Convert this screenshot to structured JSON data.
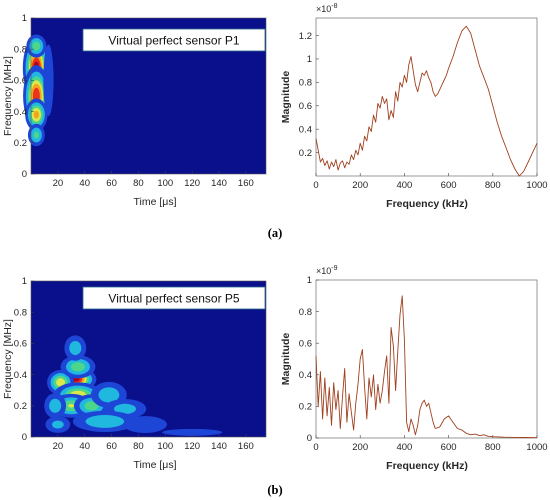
{
  "figure": {
    "label_a": "(a)",
    "label_b": "(b)"
  },
  "chart_data": [
    {
      "id": "a-left",
      "type": "heatmap",
      "title": "Virtual perfect sensor P1",
      "xlabel": "Time [μs]",
      "ylabel": "Frequency [MHz]",
      "xlim": [
        0,
        175
      ],
      "ylim": [
        0,
        1
      ],
      "xticks": [
        20,
        40,
        60,
        80,
        100,
        120,
        140,
        160
      ],
      "yticks": [
        0,
        0.2,
        0.4,
        0.6,
        0.8,
        1
      ],
      "colors": {
        "background": "#0a0f8c",
        "levels": [
          "#1e46d6",
          "#21b8e0",
          "#4cd68a",
          "#d9e84a",
          "#f7a21c",
          "#e8341c",
          "#b3001a"
        ]
      },
      "blobs": [
        {
          "t": 4,
          "f": 0.68,
          "st": 4.5,
          "sf": 0.09,
          "a": 1.0
        },
        {
          "t": 4,
          "f": 0.5,
          "st": 4.5,
          "sf": 0.09,
          "a": 0.9
        },
        {
          "t": 4,
          "f": 0.38,
          "st": 4,
          "sf": 0.05,
          "a": 0.7
        },
        {
          "t": 4,
          "f": 0.82,
          "st": 4,
          "sf": 0.04,
          "a": 0.45
        },
        {
          "t": 4,
          "f": 0.25,
          "st": 3.5,
          "sf": 0.04,
          "a": 0.4
        },
        {
          "t": 13,
          "f": 0.6,
          "st": 3,
          "sf": 0.18,
          "a": 0.18
        }
      ]
    },
    {
      "id": "a-right",
      "type": "line",
      "xlabel": "Frequency (kHz)",
      "ylabel": "Magnitude",
      "multiplier": "×10",
      "multiplier_exp": "-8",
      "xlim": [
        0,
        1000
      ],
      "ylim": [
        0,
        1.35
      ],
      "xticks": [
        0,
        200,
        400,
        600,
        800,
        1000
      ],
      "yticks": [
        0.2,
        0.4,
        0.6,
        0.8,
        1,
        1.2
      ],
      "color": "#a0401e",
      "x": [
        0,
        10,
        20,
        30,
        40,
        50,
        60,
        70,
        80,
        90,
        100,
        110,
        120,
        130,
        140,
        150,
        160,
        170,
        180,
        190,
        200,
        210,
        220,
        230,
        240,
        250,
        260,
        270,
        280,
        290,
        300,
        310,
        320,
        330,
        340,
        350,
        360,
        370,
        380,
        390,
        400,
        410,
        420,
        430,
        440,
        450,
        460,
        470,
        480,
        490,
        500,
        510,
        520,
        530,
        540,
        550,
        560,
        570,
        580,
        590,
        600,
        620,
        640,
        660,
        680,
        700,
        720,
        740,
        760,
        780,
        800,
        820,
        840,
        860,
        880,
        900,
        920,
        940,
        960,
        980,
        1000
      ],
      "y": [
        0.32,
        0.22,
        0.12,
        0.15,
        0.09,
        0.13,
        0.06,
        0.12,
        0.08,
        0.14,
        0.05,
        0.11,
        0.13,
        0.07,
        0.12,
        0.1,
        0.18,
        0.14,
        0.22,
        0.18,
        0.28,
        0.22,
        0.34,
        0.3,
        0.42,
        0.38,
        0.52,
        0.46,
        0.62,
        0.58,
        0.68,
        0.62,
        0.66,
        0.48,
        0.56,
        0.5,
        0.72,
        0.64,
        0.8,
        0.76,
        0.86,
        0.8,
        0.95,
        1.02,
        0.9,
        0.78,
        0.72,
        0.8,
        0.88,
        0.86,
        0.9,
        0.84,
        0.8,
        0.72,
        0.68,
        0.7,
        0.74,
        0.78,
        0.82,
        0.86,
        0.92,
        1.02,
        1.14,
        1.24,
        1.28,
        1.22,
        1.08,
        0.94,
        0.84,
        0.74,
        0.6,
        0.46,
        0.34,
        0.24,
        0.14,
        0.06,
        0.0,
        0.04,
        0.12,
        0.2,
        0.28
      ]
    },
    {
      "id": "b-left",
      "type": "heatmap",
      "title": "Virtual perfect sensor P5",
      "xlabel": "Time [μs]",
      "ylabel": "Frequency [MHz]",
      "xlim": [
        0,
        175
      ],
      "ylim": [
        0,
        1
      ],
      "xticks": [
        20,
        40,
        60,
        80,
        100,
        120,
        140,
        160
      ],
      "yticks": [
        0,
        0.2,
        0.4,
        0.6,
        0.8,
        1
      ],
      "colors": {
        "background": "#0a0f8c",
        "levels": [
          "#1e46d6",
          "#21b8e0",
          "#4cd68a",
          "#d9e84a",
          "#f7a21c",
          "#e8341c",
          "#b3001a"
        ]
      },
      "blobs": [
        {
          "t": 33,
          "f": 0.37,
          "st": 7,
          "sf": 0.035,
          "a": 1.0
        },
        {
          "t": 22,
          "f": 0.35,
          "st": 5,
          "sf": 0.04,
          "a": 0.6
        },
        {
          "t": 35,
          "f": 0.27,
          "st": 9,
          "sf": 0.04,
          "a": 0.6
        },
        {
          "t": 30,
          "f": 0.2,
          "st": 8,
          "sf": 0.04,
          "a": 0.5
        },
        {
          "t": 45,
          "f": 0.2,
          "st": 7,
          "sf": 0.04,
          "a": 0.45
        },
        {
          "t": 35,
          "f": 0.45,
          "st": 7,
          "sf": 0.04,
          "a": 0.45
        },
        {
          "t": 33,
          "f": 0.57,
          "st": 5,
          "sf": 0.05,
          "a": 0.3
        },
        {
          "t": 58,
          "f": 0.27,
          "st": 8,
          "sf": 0.05,
          "a": 0.32
        },
        {
          "t": 70,
          "f": 0.18,
          "st": 10,
          "sf": 0.04,
          "a": 0.28
        },
        {
          "t": 55,
          "f": 0.1,
          "st": 14,
          "sf": 0.04,
          "a": 0.34
        },
        {
          "t": 18,
          "f": 0.2,
          "st": 5,
          "sf": 0.05,
          "a": 0.3
        },
        {
          "t": 20,
          "f": 0.08,
          "st": 6,
          "sf": 0.035,
          "a": 0.26
        },
        {
          "t": 85,
          "f": 0.08,
          "st": 12,
          "sf": 0.04,
          "a": 0.2
        },
        {
          "t": 120,
          "f": 0.03,
          "st": 20,
          "sf": 0.02,
          "a": 0.15
        }
      ]
    },
    {
      "id": "b-right",
      "type": "line",
      "xlabel": "Frequency (kHz)",
      "ylabel": "Magnitude",
      "multiplier": "×10",
      "multiplier_exp": "-9",
      "xlim": [
        0,
        1000
      ],
      "ylim": [
        0,
        1
      ],
      "xticks": [
        0,
        200,
        400,
        600,
        800,
        1000
      ],
      "yticks": [
        0,
        0.2,
        0.4,
        0.6,
        0.8,
        1
      ],
      "color": "#a0401e",
      "x": [
        0,
        10,
        20,
        30,
        40,
        50,
        60,
        70,
        80,
        90,
        100,
        110,
        120,
        130,
        140,
        150,
        160,
        170,
        180,
        190,
        200,
        210,
        220,
        230,
        240,
        250,
        260,
        270,
        280,
        290,
        300,
        310,
        320,
        330,
        340,
        350,
        360,
        370,
        380,
        390,
        400,
        410,
        420,
        430,
        440,
        450,
        460,
        470,
        480,
        490,
        500,
        510,
        520,
        530,
        540,
        560,
        580,
        600,
        620,
        640,
        660,
        680,
        700,
        720,
        740,
        760,
        780,
        800,
        850,
        900,
        950,
        1000
      ],
      "y": [
        0.52,
        0.2,
        0.42,
        0.12,
        0.38,
        0.14,
        0.32,
        0.08,
        0.35,
        0.18,
        0.3,
        0.06,
        0.26,
        0.44,
        0.1,
        0.28,
        0.16,
        0.05,
        0.22,
        0.34,
        0.5,
        0.56,
        0.32,
        0.12,
        0.38,
        0.26,
        0.4,
        0.18,
        0.34,
        0.22,
        0.3,
        0.42,
        0.52,
        0.22,
        0.7,
        0.58,
        0.3,
        0.55,
        0.78,
        0.9,
        0.62,
        0.1,
        0.04,
        0.12,
        0.08,
        0.02,
        0.08,
        0.18,
        0.22,
        0.24,
        0.2,
        0.22,
        0.16,
        0.1,
        0.06,
        0.07,
        0.12,
        0.14,
        0.1,
        0.06,
        0.05,
        0.03,
        0.02,
        0.025,
        0.015,
        0.02,
        0.01,
        0.008,
        0.005,
        0.004,
        0.003,
        0.002
      ]
    }
  ]
}
